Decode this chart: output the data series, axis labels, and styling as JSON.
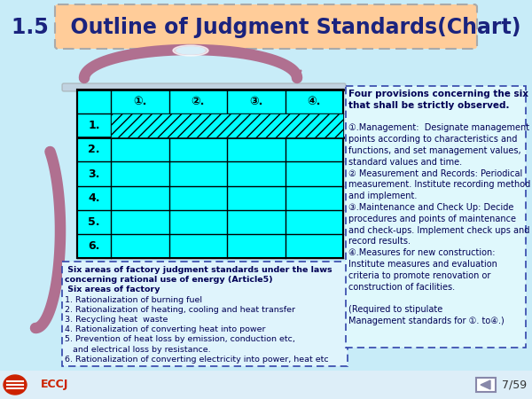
{
  "title": "1.5   Outline of Judgment Standards(Chart)",
  "title_color": "#1a237e",
  "title_bg_color": "#FFCC99",
  "bg_color": "#c8ecf8",
  "table_header": [
    "①.",
    "②.",
    "③.",
    "④."
  ],
  "table_rows": [
    "1.",
    "2.",
    "3.",
    "4.",
    "5.",
    "6."
  ],
  "table_bg": "#00FFFF",
  "left_box_lines": [
    " Six areas of factory judgment standards under the laws",
    "concerning rational use of energy (Article5)",
    " Six areas of factory",
    "1. Rationalization of burning fuel",
    "2. Rationalization of heating, cooling and heat transfer",
    "3. Recycling heat  waste",
    "4. Rationalization of converting heat into power",
    "5. Prevention of heat loss by emission, conduction etc,",
    "   and electrical loss by resistance.",
    "6. Rationalization of converting electricity into power, heat etc"
  ],
  "right_box_lines": [
    "Four provisions concerning the six areas",
    "that shall be strictly observed.",
    "",
    "①.Management:  Designate management",
    "points according to characteristics and",
    "functions, and set management values,",
    "standard values and time.",
    "② Measurement and Records: Periodical",
    "measurement. Institute recording method",
    "and implement.",
    "③.Maintenance and Check Up: Decide",
    "procedures and points of maintenance",
    "and check-ups. Implement check ups and",
    "record results.",
    "④.Measures for new construction:",
    "Institute measures and evaluation",
    "criteria to promote renovation or",
    "construction of facilities.",
    "",
    "(Required to stipulate",
    "Management standards for ①. to④.)"
  ],
  "page": "7/59",
  "eccj_color": "#cc2200",
  "arrow_color": "#b07090",
  "nav_box_color": "#8888aa"
}
